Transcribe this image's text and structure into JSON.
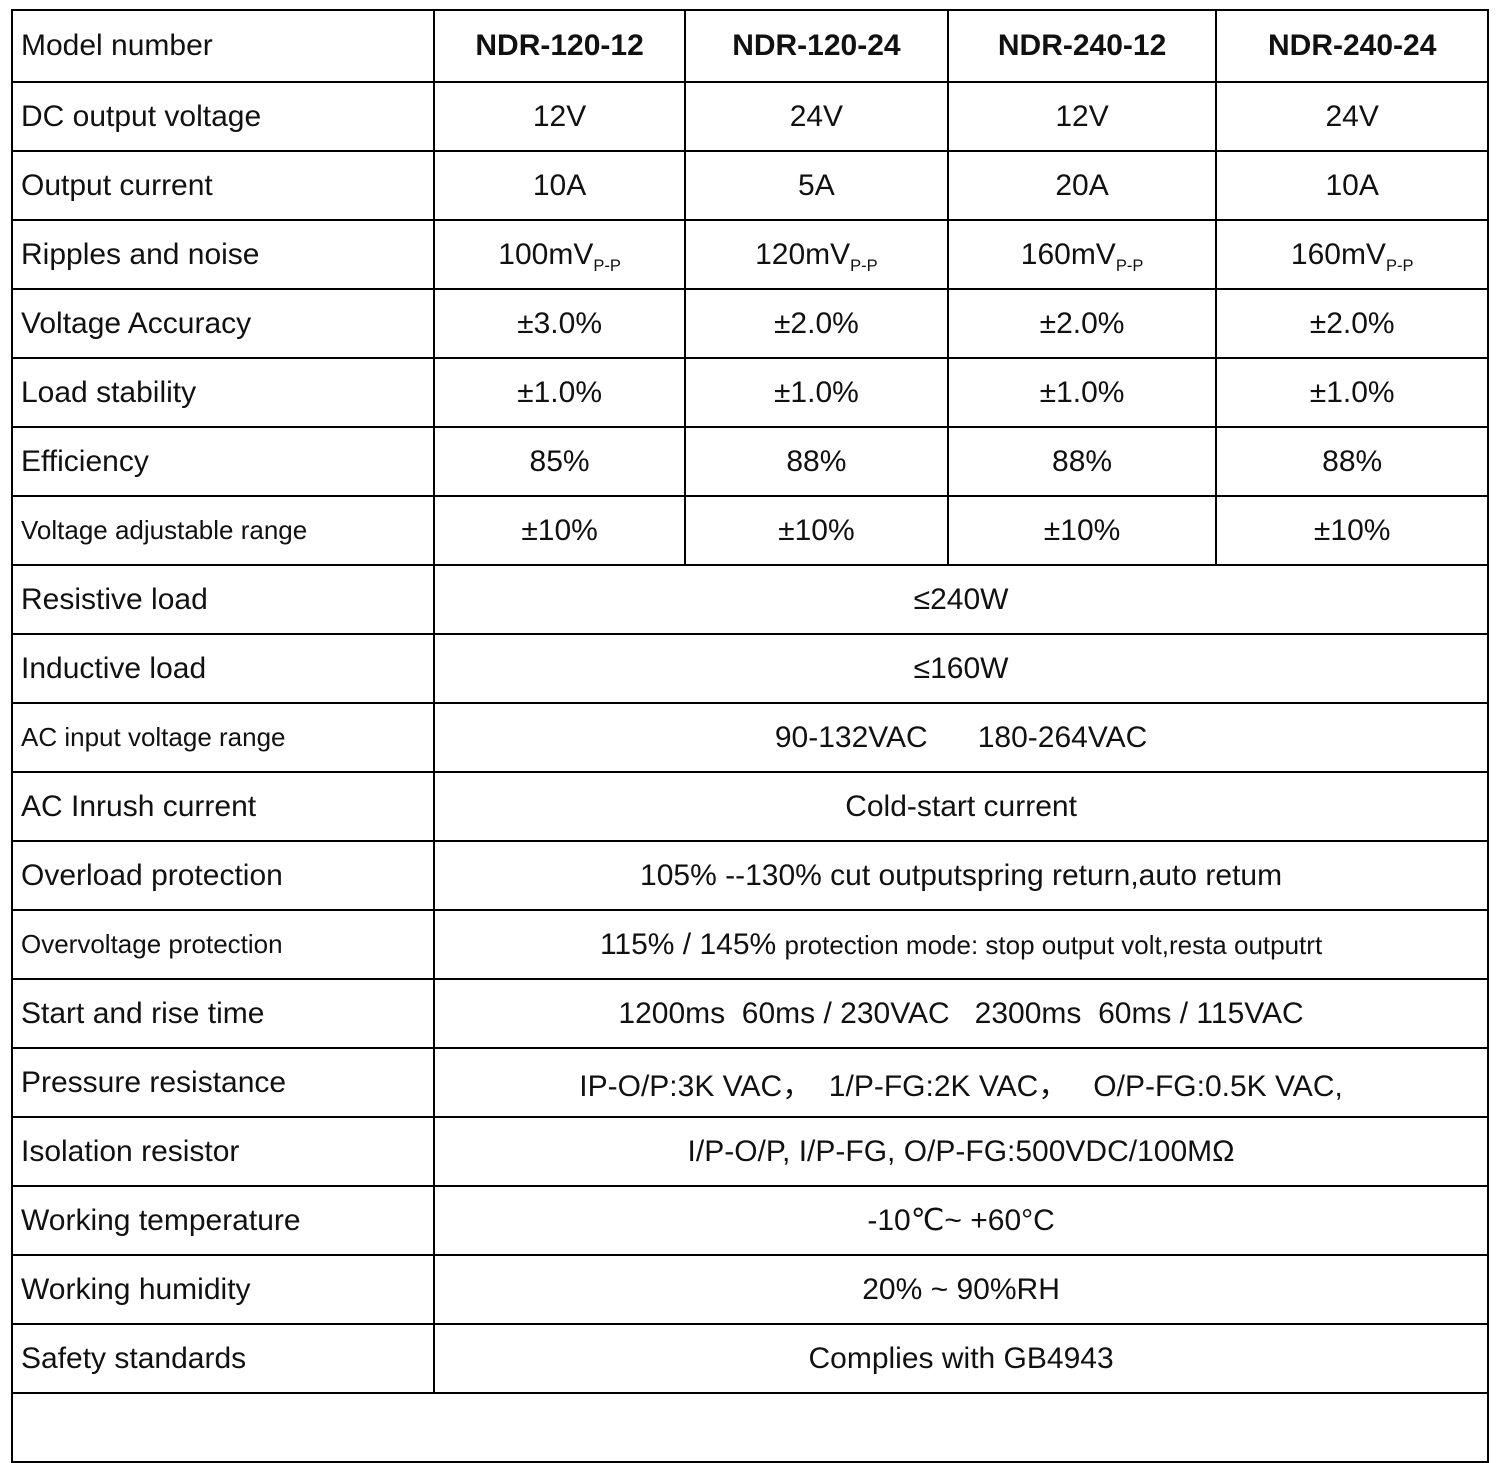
{
  "table": {
    "header": {
      "label": "Model number",
      "models": [
        "NDR-120-12",
        "NDR-120-24",
        "NDR-240-12",
        "NDR-240-24"
      ]
    },
    "rows": [
      {
        "label": "DC output voltage",
        "values": [
          "12V",
          "24V",
          "12V",
          "24V"
        ]
      },
      {
        "label": "Output current",
        "values": [
          "10A",
          "5A",
          "20A",
          "10A"
        ]
      },
      {
        "label": "Ripples and noise",
        "values": [
          {
            "text": "100mV",
            "sub": "P-P"
          },
          {
            "text": "120mV",
            "sub": "P-P"
          },
          {
            "text": "160mV",
            "sub": "P-P"
          },
          {
            "text": "160mV",
            "sub": "P-P"
          }
        ]
      },
      {
        "label": "Voltage Accuracy",
        "values": [
          "±3.0%",
          "±2.0%",
          "±2.0%",
          "±2.0%"
        ]
      },
      {
        "label": "Load stability",
        "values": [
          "±1.0%",
          "±1.0%",
          "±1.0%",
          "±1.0%"
        ]
      },
      {
        "label": "Efficiency",
        "values": [
          "85%",
          "88%",
          "88%",
          "88%"
        ]
      },
      {
        "label": "Voltage adjustable range",
        "values": [
          "±10%",
          "±10%",
          "±10%",
          "±10%"
        ]
      },
      {
        "label": "Resistive load",
        "span": "≤240W"
      },
      {
        "label": "Inductive load",
        "span": "≤160W"
      },
      {
        "label": "AC input voltage range",
        "span": "90-132VAC      180-264VAC"
      },
      {
        "label": "AC Inrush current",
        "span": "Cold-start current"
      },
      {
        "label": "Overload protection",
        "span": "105% --130% cut outputspring return,auto retum"
      },
      {
        "label": "Overvoltage protection",
        "span": "115% / 145% ",
        "span_small": "protection mode: stop output volt,resta outputrt"
      },
      {
        "label": "Start and rise time",
        "span": "1200ms  60ms / 230VAC   2300ms  60ms / 115VAC"
      },
      {
        "label": "Pressure resistance",
        "span": "IP-O/P:3K VAC，  1/P-FG:2K VAC，   O/P-FG:0.5K VAC,"
      },
      {
        "label": "Isolation resistor",
        "span": "I/P-O/P, I/P-FG, O/P-FG:500VDC/100MΩ"
      },
      {
        "label": "Working temperature",
        "span": "-10℃~ +60°C"
      },
      {
        "label": "Working humidity",
        "span": "20% ~ 90%RH"
      },
      {
        "label": "Safety standards",
        "span": "Complies with GB4943"
      }
    ]
  }
}
